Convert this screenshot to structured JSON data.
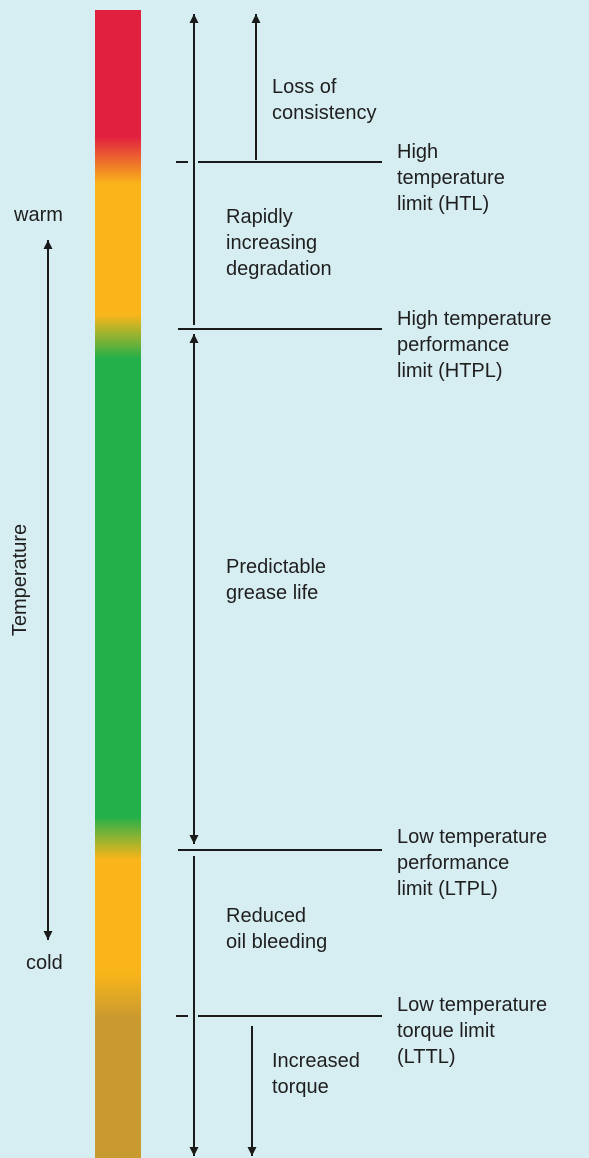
{
  "colors": {
    "background": "#d6edf1",
    "hot": "#e1203f",
    "warm": "#f9b51a",
    "good": "#22b04a",
    "cold_bottom": "#c99a30",
    "line": "#1a1a1a"
  },
  "axis": {
    "label": "Temperature",
    "warm": "warm",
    "cold": "cold"
  },
  "limits": {
    "htl": [
      "High",
      "temperature",
      "limit (HTL)"
    ],
    "htpl": [
      "High temperature",
      "performance",
      "limit (HTPL)"
    ],
    "ltpl": [
      "Low temperature",
      "performance",
      "limit (LTPL)"
    ],
    "lttl": [
      "Low temperature",
      "torque limit",
      "(LTTL)"
    ]
  },
  "zones": {
    "loss": [
      "Loss of",
      "consistency"
    ],
    "degradation": [
      "Rapidly",
      "increasing",
      "degradation"
    ],
    "predictable": [
      "Predictable",
      "grease life"
    ],
    "bleeding": [
      "Reduced",
      "oil bleeding"
    ],
    "torque": [
      "Increased",
      "torque"
    ]
  }
}
